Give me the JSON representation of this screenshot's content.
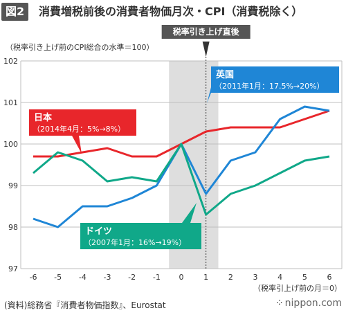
{
  "header": {
    "badge": "図2",
    "title": "消費増税前後の消費者物価月次・CPI（消費税除く）"
  },
  "chart_data": {
    "type": "line",
    "ylabel": "（税率引き上げ前のCPI総合の水準＝100）",
    "xlabel": "（税率引上げ前の月＝0）",
    "x": [
      -6,
      -5,
      -4,
      -3,
      -2,
      -1,
      0,
      1,
      2,
      3,
      4,
      5,
      6
    ],
    "xlim": [
      -6,
      6
    ],
    "ylim": [
      97,
      102
    ],
    "yticks": [
      97,
      98,
      99,
      100,
      101,
      102
    ],
    "grid": "horizontal",
    "highlight": {
      "from": -0.5,
      "to": 1.5
    },
    "marker": {
      "x": 1,
      "label": "税率引き上げ直後"
    },
    "series": [
      {
        "name": "日本",
        "note": "（2014年4月：5%→8%）",
        "color": "#e8262b",
        "values": [
          99.7,
          99.7,
          99.8,
          99.9,
          99.7,
          99.7,
          100.0,
          100.3,
          100.4,
          100.4,
          100.4,
          100.6,
          100.8
        ]
      },
      {
        "name": "英国",
        "note": "（2011年1月：17.5%→20%）",
        "color": "#1f86d6",
        "values": [
          98.2,
          98.0,
          98.5,
          98.5,
          98.7,
          99.0,
          100.0,
          98.8,
          99.6,
          99.8,
          100.6,
          100.9,
          100.8
        ]
      },
      {
        "name": "ドイツ",
        "note": "（2007年1月：16%→19%）",
        "color": "#10a889",
        "values": [
          99.3,
          99.8,
          99.6,
          99.1,
          99.2,
          99.1,
          100.0,
          98.3,
          98.8,
          99.0,
          99.3,
          99.6,
          99.7
        ]
      }
    ]
  },
  "footer": {
    "source": "(資料)総務省『消費者物価指数』、Eurostat",
    "logo": "nippon.com"
  }
}
